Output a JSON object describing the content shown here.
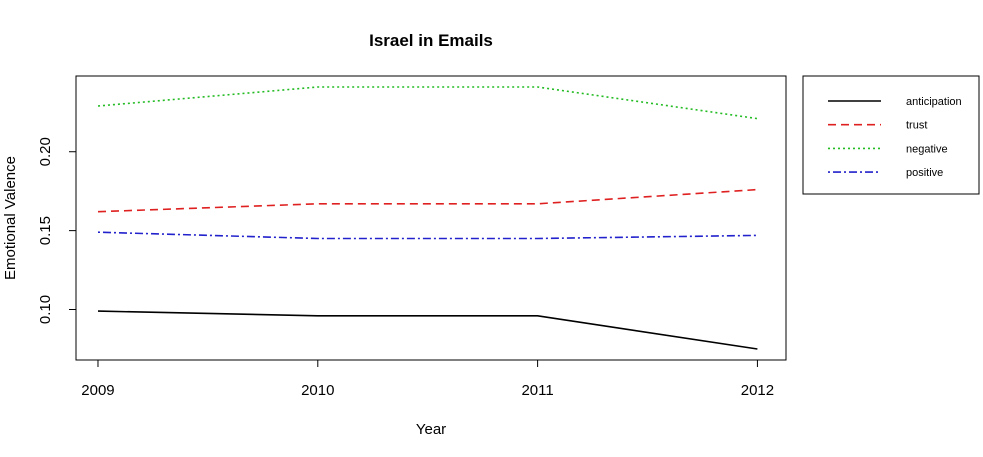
{
  "chart_data": {
    "type": "line",
    "title": "Israel in Emails",
    "xlabel": "Year",
    "ylabel": "Emotional Valence",
    "x": [
      2009,
      2010,
      2011,
      2012
    ],
    "x_tick_labels": [
      "2009",
      "2010",
      "2011",
      "2012"
    ],
    "y_ticks": [
      0.1,
      0.15,
      0.2
    ],
    "y_tick_labels": [
      "0.10",
      "0.15",
      "0.20"
    ],
    "xlim": [
      2008.9,
      2012.13
    ],
    "ylim": [
      0.068,
      0.248
    ],
    "grid": false,
    "legend_position": "right",
    "series": [
      {
        "name": "anticipation",
        "values": [
          0.099,
          0.096,
          0.096,
          0.075
        ],
        "color": "#000000",
        "dash": "solid"
      },
      {
        "name": "trust",
        "values": [
          0.162,
          0.167,
          0.167,
          0.176
        ],
        "color": "#DF2020",
        "dash": "dashed"
      },
      {
        "name": "negative",
        "values": [
          0.229,
          0.241,
          0.241,
          0.221
        ],
        "color": "#22BB22",
        "dash": "dotted"
      },
      {
        "name": "positive",
        "values": [
          0.149,
          0.145,
          0.145,
          0.147
        ],
        "color": "#2222CC",
        "dash": "dotdash"
      }
    ]
  }
}
